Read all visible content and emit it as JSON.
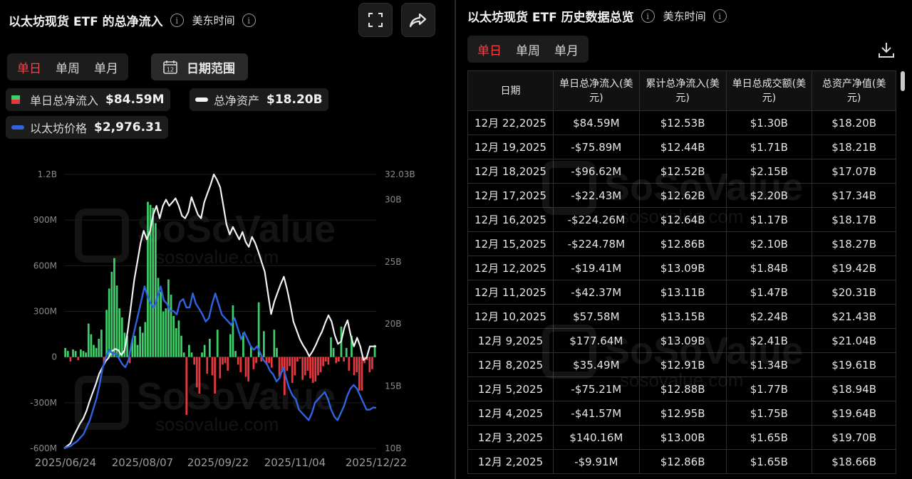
{
  "left": {
    "title": "以太坊现货 ETF 的总净流入",
    "timezone": "美东时间",
    "tabs": [
      "单日",
      "单周",
      "单月"
    ],
    "active_tab": 0,
    "date_range_label": "日期范围",
    "calendar_day": "12",
    "legend": {
      "inflow_name": "单日总净流入",
      "inflow_value": "$84.59M",
      "assets_name": "总净资产",
      "assets_value": "$18.20B",
      "price_name": "以太坊价格",
      "price_value": "$2,976.31"
    }
  },
  "right": {
    "title": "以太坊现货 ETF 历史数据总览",
    "timezone": "美东时间",
    "tabs": [
      "单日",
      "单周",
      "单月"
    ],
    "active_tab": 0,
    "columns": [
      "日期",
      "单日总净流入(美元)",
      "累计总净流入(美元)",
      "单日总成交额(美元)",
      "总资产净值(美元)"
    ],
    "rows": [
      {
        "date": "12月 22,2025",
        "net": "$84.59M",
        "dir": "pos",
        "cum": "$12.53B",
        "vol": "$1.30B",
        "nav": "$18.20B"
      },
      {
        "date": "12月 19,2025",
        "net": "-$75.89M",
        "dir": "neg",
        "cum": "$12.44B",
        "vol": "$1.71B",
        "nav": "$18.21B"
      },
      {
        "date": "12月 18,2025",
        "net": "-$96.62M",
        "dir": "neg",
        "cum": "$12.52B",
        "vol": "$2.15B",
        "nav": "$17.07B"
      },
      {
        "date": "12月 17,2025",
        "net": "-$22.43M",
        "dir": "neg",
        "cum": "$12.62B",
        "vol": "$2.20B",
        "nav": "$17.34B"
      },
      {
        "date": "12月 16,2025",
        "net": "-$224.26M",
        "dir": "neg",
        "cum": "$12.64B",
        "vol": "$1.17B",
        "nav": "$18.17B"
      },
      {
        "date": "12月 15,2025",
        "net": "-$224.78M",
        "dir": "neg",
        "cum": "$12.86B",
        "vol": "$2.10B",
        "nav": "$18.27B"
      },
      {
        "date": "12月 12,2025",
        "net": "-$19.41M",
        "dir": "neg",
        "cum": "$13.09B",
        "vol": "$1.84B",
        "nav": "$19.42B"
      },
      {
        "date": "12月 11,2025",
        "net": "-$42.37M",
        "dir": "neg",
        "cum": "$13.11B",
        "vol": "$1.47B",
        "nav": "$20.31B"
      },
      {
        "date": "12月 10,2025",
        "net": "$57.58M",
        "dir": "pos",
        "cum": "$13.15B",
        "vol": "$2.24B",
        "nav": "$21.43B"
      },
      {
        "date": "12月 9,2025",
        "net": "$177.64M",
        "dir": "pos",
        "cum": "$13.09B",
        "vol": "$2.41B",
        "nav": "$21.04B"
      },
      {
        "date": "12月 8,2025",
        "net": "$35.49M",
        "dir": "pos",
        "cum": "$12.91B",
        "vol": "$1.34B",
        "nav": "$19.61B"
      },
      {
        "date": "12月 5,2025",
        "net": "-$75.21M",
        "dir": "neg",
        "cum": "$12.88B",
        "vol": "$1.77B",
        "nav": "$18.94B"
      },
      {
        "date": "12月 4,2025",
        "net": "-$41.57M",
        "dir": "neg",
        "cum": "$12.95B",
        "vol": "$1.75B",
        "nav": "$19.64B"
      },
      {
        "date": "12月 3,2025",
        "net": "$140.16M",
        "dir": "pos",
        "cum": "$13.00B",
        "vol": "$1.65B",
        "nav": "$19.70B"
      },
      {
        "date": "12月 2,2025",
        "net": "-$9.91M",
        "dir": "neg",
        "cum": "$12.86B",
        "vol": "$1.65B",
        "nav": "$18.66B"
      }
    ]
  },
  "watermark": {
    "brand": "SoSoValue",
    "site": "sosovalue.com"
  },
  "colors": {
    "positive": "#3fcf6a",
    "negative": "#e5393f",
    "assets_line": "#f2f2f2",
    "price_line": "#2f63e0",
    "active_tab": "#f2424a"
  },
  "chart_data": {
    "type": "bar",
    "x_tick_labels": [
      "2025/06/24",
      "2025/08/07",
      "2025/09/22",
      "2025/11/04",
      "2025/12/22"
    ],
    "y_left": {
      "ticks": [
        "1.2B",
        "900M",
        "600M",
        "300M",
        "0",
        "-300M",
        "-600M"
      ],
      "range": [
        -600,
        1200
      ],
      "unit": "M USD"
    },
    "y_right": {
      "ticks": [
        "32.03B",
        "30B",
        "25B",
        "20B",
        "15B",
        "10B"
      ],
      "range": [
        10,
        32.03
      ],
      "unit": "B USD"
    },
    "series": [
      {
        "name": "单日总净流入",
        "kind": "bar",
        "values": [
          60,
          40,
          -30,
          50,
          40,
          -20,
          50,
          40,
          30,
          220,
          150,
          80,
          60,
          120,
          180,
          -50,
          310,
          450,
          560,
          650,
          470,
          320,
          260,
          160,
          140,
          -40,
          120,
          140,
          80,
          200,
          160,
          230,
          1020,
          1000,
          980,
          880,
          520,
          430,
          300,
          320,
          510,
          410,
          270,
          190,
          240,
          140,
          30,
          -380,
          80,
          30,
          -50,
          -200,
          -240,
          30,
          80,
          -110,
          120,
          -120,
          -240,
          180,
          -140,
          -50,
          -40,
          -90,
          150,
          340,
          40,
          -50,
          -100,
          160,
          -130,
          -160,
          70,
          -80,
          -40,
          360,
          -30,
          170,
          -50,
          -40,
          -70,
          180,
          60,
          -130,
          -100,
          -250,
          -90,
          -60,
          -170,
          -120,
          -30,
          -10,
          -150,
          -120,
          -90,
          -140,
          -170,
          -160,
          -120,
          -100,
          -60,
          -30,
          -50,
          130,
          60,
          -40,
          -30,
          200,
          -30,
          60,
          -90,
          140,
          -120,
          -100,
          -220,
          -220,
          -40,
          -20,
          -100,
          -80,
          80
        ],
        "last_value_label": "$84.59M"
      },
      {
        "name": "总净资产",
        "kind": "line",
        "values": [
          10,
          10.2,
          10.4,
          11,
          11.5,
          12,
          12.4,
          13,
          13.8,
          14.5,
          15.2,
          16,
          16.5,
          17,
          17.3,
          17.8,
          18,
          17.9,
          17.5,
          17.9,
          19.5,
          21.5,
          23.5,
          25,
          26.5,
          27.5,
          26.8,
          27.5,
          28.8,
          29.5,
          28.5,
          29.5,
          30,
          29.5,
          29.8,
          30.1,
          29.5,
          28.7,
          28.5,
          29,
          30.2,
          29.5,
          28.8,
          28.5,
          29.8,
          30.5,
          31.2,
          32.03,
          31.6,
          31,
          29.5,
          28,
          27.2,
          27.8,
          27.3,
          26.8,
          27.4,
          26.6,
          26.2,
          27,
          26.5,
          25.8,
          25,
          24.2,
          22.5,
          20.8,
          21.8,
          22.5,
          23.2,
          23.8,
          22.8,
          21.6,
          20.2,
          19.5,
          18.8,
          18.3,
          17.9,
          17.4,
          17.8,
          18.3,
          18.9,
          19.4,
          20.1,
          20.7,
          20.2,
          19.1,
          18.4,
          18.6,
          19.7,
          20.3,
          19.1,
          18.2,
          18.9,
          18.2,
          17.1,
          17.3,
          18.2,
          18.2,
          18.2
        ],
        "last_value_label": "$18.20B"
      },
      {
        "name": "以太坊价格",
        "kind": "line",
        "values": [
          2400,
          2420,
          2430,
          2470,
          2500,
          2550,
          2600,
          2700,
          2800,
          2950,
          3100,
          3300,
          3550,
          3700,
          3800,
          3750,
          3750,
          3680,
          3600,
          3550,
          3650,
          3900,
          4100,
          4300,
          4500,
          4700,
          4550,
          4450,
          4400,
          4550,
          4700,
          4500,
          4450,
          4350,
          4350,
          4300,
          4480,
          4520,
          4400,
          4400,
          4600,
          4450,
          4380,
          4300,
          4200,
          4250,
          4450,
          4600,
          4450,
          4300,
          4250,
          4200,
          4150,
          4250,
          4100,
          3950,
          4050,
          3950,
          3850,
          3800,
          3850,
          3750,
          3650,
          3600,
          3500,
          3450,
          3350,
          3400,
          3550,
          3400,
          3250,
          3150,
          3100,
          2950,
          2900,
          2850,
          2800,
          2900,
          3050,
          3100,
          3150,
          3200,
          3100,
          2950,
          2850,
          2800,
          2900,
          3000,
          3150,
          3250,
          3300,
          3250,
          3150,
          3050,
          2950,
          2950,
          2980,
          2976.31
        ],
        "last_value_label": "$2,976.31"
      }
    ]
  }
}
